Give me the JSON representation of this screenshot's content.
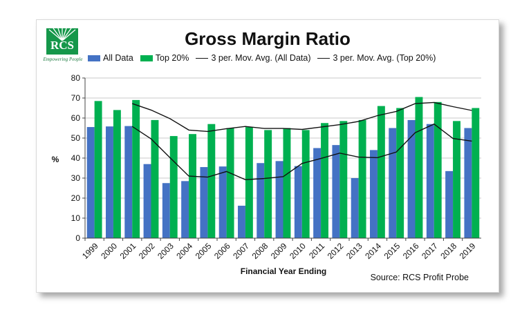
{
  "logo": {
    "name": "RCS",
    "tagline": "Empowering People"
  },
  "chart_data": {
    "type": "bar",
    "title": "Gross Margin Ratio",
    "ylabel": "%",
    "xlabel": "Financial Year Ending",
    "source": "Source: RCS Profit Probe",
    "ylim": [
      0,
      80
    ],
    "yticks": [
      0,
      10,
      20,
      30,
      40,
      50,
      60,
      70,
      80
    ],
    "grid": true,
    "legend_position": "top",
    "categories": [
      "1999",
      "2000",
      "2001",
      "2002",
      "2003",
      "2004",
      "2005",
      "2006",
      "2007",
      "2008",
      "2009",
      "2010",
      "2011",
      "2012",
      "2013",
      "2014",
      "2015",
      "2016",
      "2017",
      "2018",
      "2019"
    ],
    "series": [
      {
        "name": "All Data",
        "kind": "bar",
        "color": "#4472c4",
        "values": [
          55.5,
          55.8,
          56.0,
          37.0,
          27.5,
          28.5,
          35.5,
          35.8,
          16.2,
          37.5,
          38.5,
          36.0,
          45.0,
          46.5,
          30.0,
          44.0,
          55.0,
          59.0,
          57.0,
          33.5,
          55.0
        ]
      },
      {
        "name": "Top 20%",
        "kind": "bar",
        "color": "#00b050",
        "values": [
          68.5,
          64.0,
          69.0,
          59.0,
          51.0,
          52.0,
          57.0,
          55.0,
          55.5,
          54.0,
          55.0,
          54.0,
          57.5,
          58.5,
          59.0,
          66.0,
          65.0,
          70.5,
          68.0,
          58.5,
          65.0
        ]
      },
      {
        "name": "3 per. Mov. Avg. (All Data)",
        "kind": "line",
        "color": "#111111",
        "values": [
          null,
          null,
          55.8,
          49.6,
          40.2,
          31.0,
          30.5,
          33.3,
          29.2,
          29.8,
          30.7,
          37.3,
          39.8,
          42.5,
          40.5,
          40.2,
          43.0,
          52.7,
          57.0,
          49.8,
          48.5
        ]
      },
      {
        "name": "3 per. Mov. Avg. (Top 20%)",
        "kind": "line",
        "color": "#111111",
        "values": [
          null,
          null,
          67.2,
          64.0,
          59.7,
          54.0,
          53.3,
          54.7,
          55.8,
          54.8,
          54.8,
          54.3,
          55.5,
          56.7,
          58.3,
          61.2,
          63.3,
          67.2,
          67.8,
          65.7,
          63.8
        ]
      }
    ]
  }
}
